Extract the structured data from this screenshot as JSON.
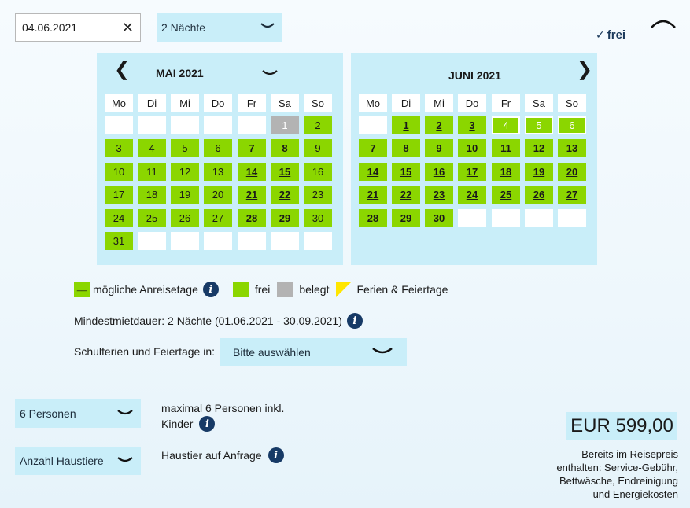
{
  "date_field": {
    "value": "04.06.2021",
    "clear_symbol": "✕"
  },
  "nights_select": {
    "value": "2 Nächte"
  },
  "status_top": {
    "check": "✓",
    "label": "frei"
  },
  "weekdays": [
    "Mo",
    "Di",
    "Mi",
    "Do",
    "Fr",
    "Sa",
    "So"
  ],
  "may": {
    "title": "MAI 2021",
    "prev_symbol": "❮",
    "days": [
      {
        "d": "",
        "s": "empty"
      },
      {
        "d": "",
        "s": "empty"
      },
      {
        "d": "",
        "s": "empty"
      },
      {
        "d": "",
        "s": "empty"
      },
      {
        "d": "",
        "s": "empty"
      },
      {
        "d": "1",
        "s": "grey"
      },
      {
        "d": "2",
        "s": "green"
      },
      {
        "d": "3",
        "s": "green"
      },
      {
        "d": "4",
        "s": "green"
      },
      {
        "d": "5",
        "s": "green"
      },
      {
        "d": "6",
        "s": "green"
      },
      {
        "d": "7",
        "s": "bold"
      },
      {
        "d": "8",
        "s": "bold"
      },
      {
        "d": "9",
        "s": "green"
      },
      {
        "d": "10",
        "s": "green"
      },
      {
        "d": "11",
        "s": "green"
      },
      {
        "d": "12",
        "s": "green"
      },
      {
        "d": "13",
        "s": "green"
      },
      {
        "d": "14",
        "s": "bold"
      },
      {
        "d": "15",
        "s": "bold"
      },
      {
        "d": "16",
        "s": "green"
      },
      {
        "d": "17",
        "s": "green"
      },
      {
        "d": "18",
        "s": "green"
      },
      {
        "d": "19",
        "s": "green"
      },
      {
        "d": "20",
        "s": "green"
      },
      {
        "d": "21",
        "s": "bold"
      },
      {
        "d": "22",
        "s": "bold"
      },
      {
        "d": "23",
        "s": "green"
      },
      {
        "d": "24",
        "s": "green"
      },
      {
        "d": "25",
        "s": "green"
      },
      {
        "d": "26",
        "s": "green"
      },
      {
        "d": "27",
        "s": "green"
      },
      {
        "d": "28",
        "s": "bold"
      },
      {
        "d": "29",
        "s": "bold"
      },
      {
        "d": "30",
        "s": "green"
      },
      {
        "d": "31",
        "s": "green"
      },
      {
        "d": "",
        "s": "empty"
      },
      {
        "d": "",
        "s": "empty"
      },
      {
        "d": "",
        "s": "empty"
      },
      {
        "d": "",
        "s": "empty"
      },
      {
        "d": "",
        "s": "empty"
      },
      {
        "d": "",
        "s": "empty"
      }
    ]
  },
  "june": {
    "title": "JUNI 2021",
    "next_symbol": "❯",
    "days": [
      {
        "d": "",
        "s": "empty"
      },
      {
        "d": "1",
        "s": "bold"
      },
      {
        "d": "2",
        "s": "bold"
      },
      {
        "d": "3",
        "s": "bold"
      },
      {
        "d": "4",
        "s": "lightonly"
      },
      {
        "d": "5",
        "s": "lightonly"
      },
      {
        "d": "6",
        "s": "lightonly"
      },
      {
        "d": "7",
        "s": "bold"
      },
      {
        "d": "8",
        "s": "bold"
      },
      {
        "d": "9",
        "s": "bold"
      },
      {
        "d": "10",
        "s": "bold"
      },
      {
        "d": "11",
        "s": "bold"
      },
      {
        "d": "12",
        "s": "bold"
      },
      {
        "d": "13",
        "s": "bold"
      },
      {
        "d": "14",
        "s": "bold"
      },
      {
        "d": "15",
        "s": "bold"
      },
      {
        "d": "16",
        "s": "bold"
      },
      {
        "d": "17",
        "s": "bold"
      },
      {
        "d": "18",
        "s": "bold"
      },
      {
        "d": "19",
        "s": "bold"
      },
      {
        "d": "20",
        "s": "bold"
      },
      {
        "d": "21",
        "s": "bold"
      },
      {
        "d": "22",
        "s": "bold"
      },
      {
        "d": "23",
        "s": "bold"
      },
      {
        "d": "24",
        "s": "bold"
      },
      {
        "d": "25",
        "s": "bold"
      },
      {
        "d": "26",
        "s": "bold"
      },
      {
        "d": "27",
        "s": "bold"
      },
      {
        "d": "28",
        "s": "bold"
      },
      {
        "d": "29",
        "s": "bold"
      },
      {
        "d": "30",
        "s": "bold"
      },
      {
        "d": "",
        "s": "empty"
      },
      {
        "d": "",
        "s": "empty"
      },
      {
        "d": "",
        "s": "empty"
      },
      {
        "d": "",
        "s": "empty"
      }
    ]
  },
  "legend": {
    "arrival_swatch_text": "__",
    "arrival_label": "mögliche Anreisetage",
    "free_label": "frei",
    "occupied_label": "belegt",
    "holidays_label": "Ferien & Feiertage",
    "info_symbol": "i"
  },
  "min_stay": "Mindestmietdauer: 2 Nächte (01.06.2021 - 30.09.2021)",
  "holidays_select": {
    "label": "Schulferien und Feiertage in:",
    "value": "Bitte auswählen"
  },
  "persons_select": {
    "value": "6 Personen"
  },
  "persons_note": {
    "line1": "maximal 6 Personen inkl.",
    "line2": "Kinder"
  },
  "pets_select": {
    "value": "Anzahl Haustiere"
  },
  "pets_note": "Haustier auf Anfrage",
  "price": "EUR 599,00",
  "price_note": [
    "Bereits im Reisepreis",
    "enthalten: Service-Gebühr,",
    "Bettwäsche, Endreinigung",
    "und Energiekosten"
  ],
  "colors": {
    "accent_blue": "#c9eef9",
    "green": "#8bd600",
    "grey": "#b3b3b3",
    "yellow": "#ffe600",
    "info_blue": "#173a66"
  }
}
